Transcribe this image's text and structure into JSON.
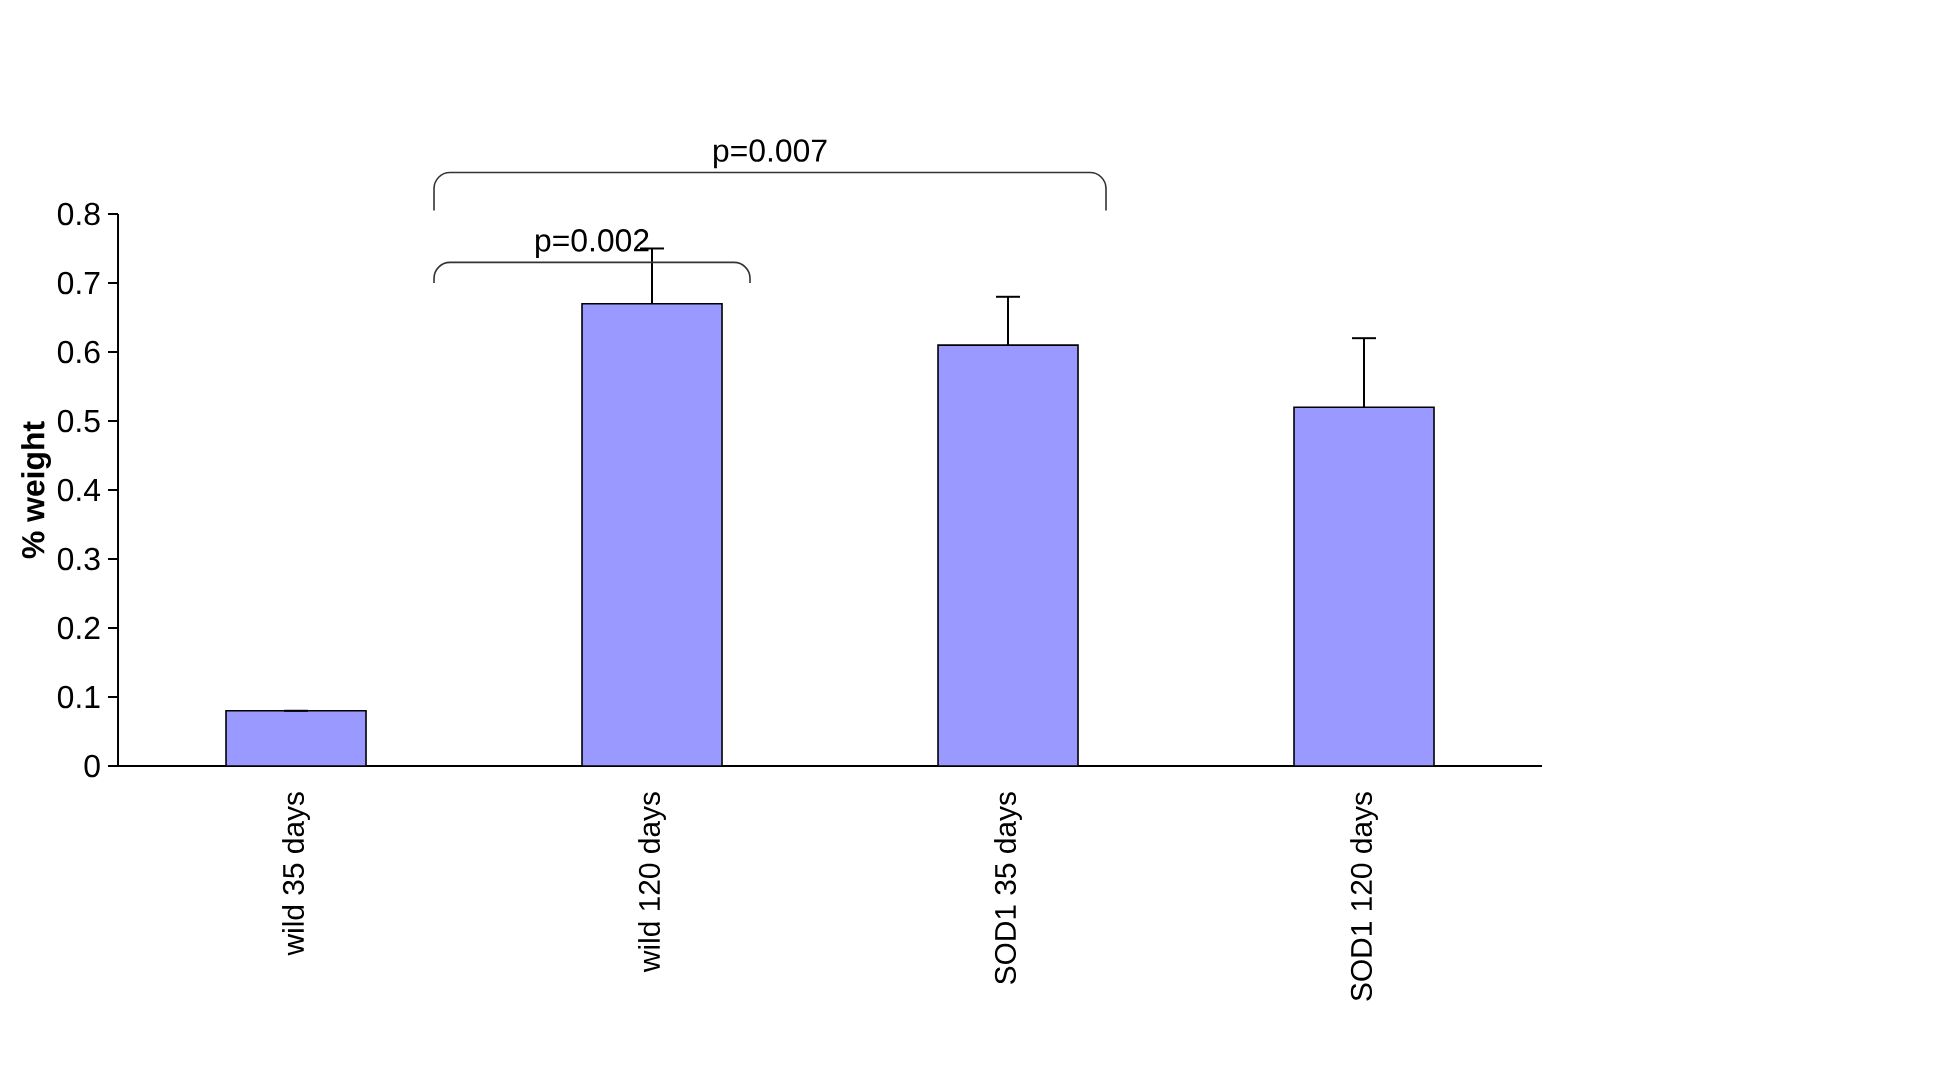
{
  "chart_data": {
    "type": "bar",
    "ylabel": "% weight",
    "categories": [
      "wild 35 days",
      "wild 120 days",
      "SOD1 35 days",
      "SOD1 120 days"
    ],
    "values": [
      0.08,
      0.67,
      0.61,
      0.52
    ],
    "errors": [
      0,
      0.08,
      0.07,
      0.1
    ],
    "color": "#9999ff",
    "ylim": [
      0,
      0.8
    ],
    "yticks": [
      0,
      0.1,
      0.2,
      0.3,
      0.4,
      0.5,
      0.6,
      0.7,
      0.8
    ],
    "annotations": [
      "p=0.002",
      "p=0.007"
    ]
  }
}
